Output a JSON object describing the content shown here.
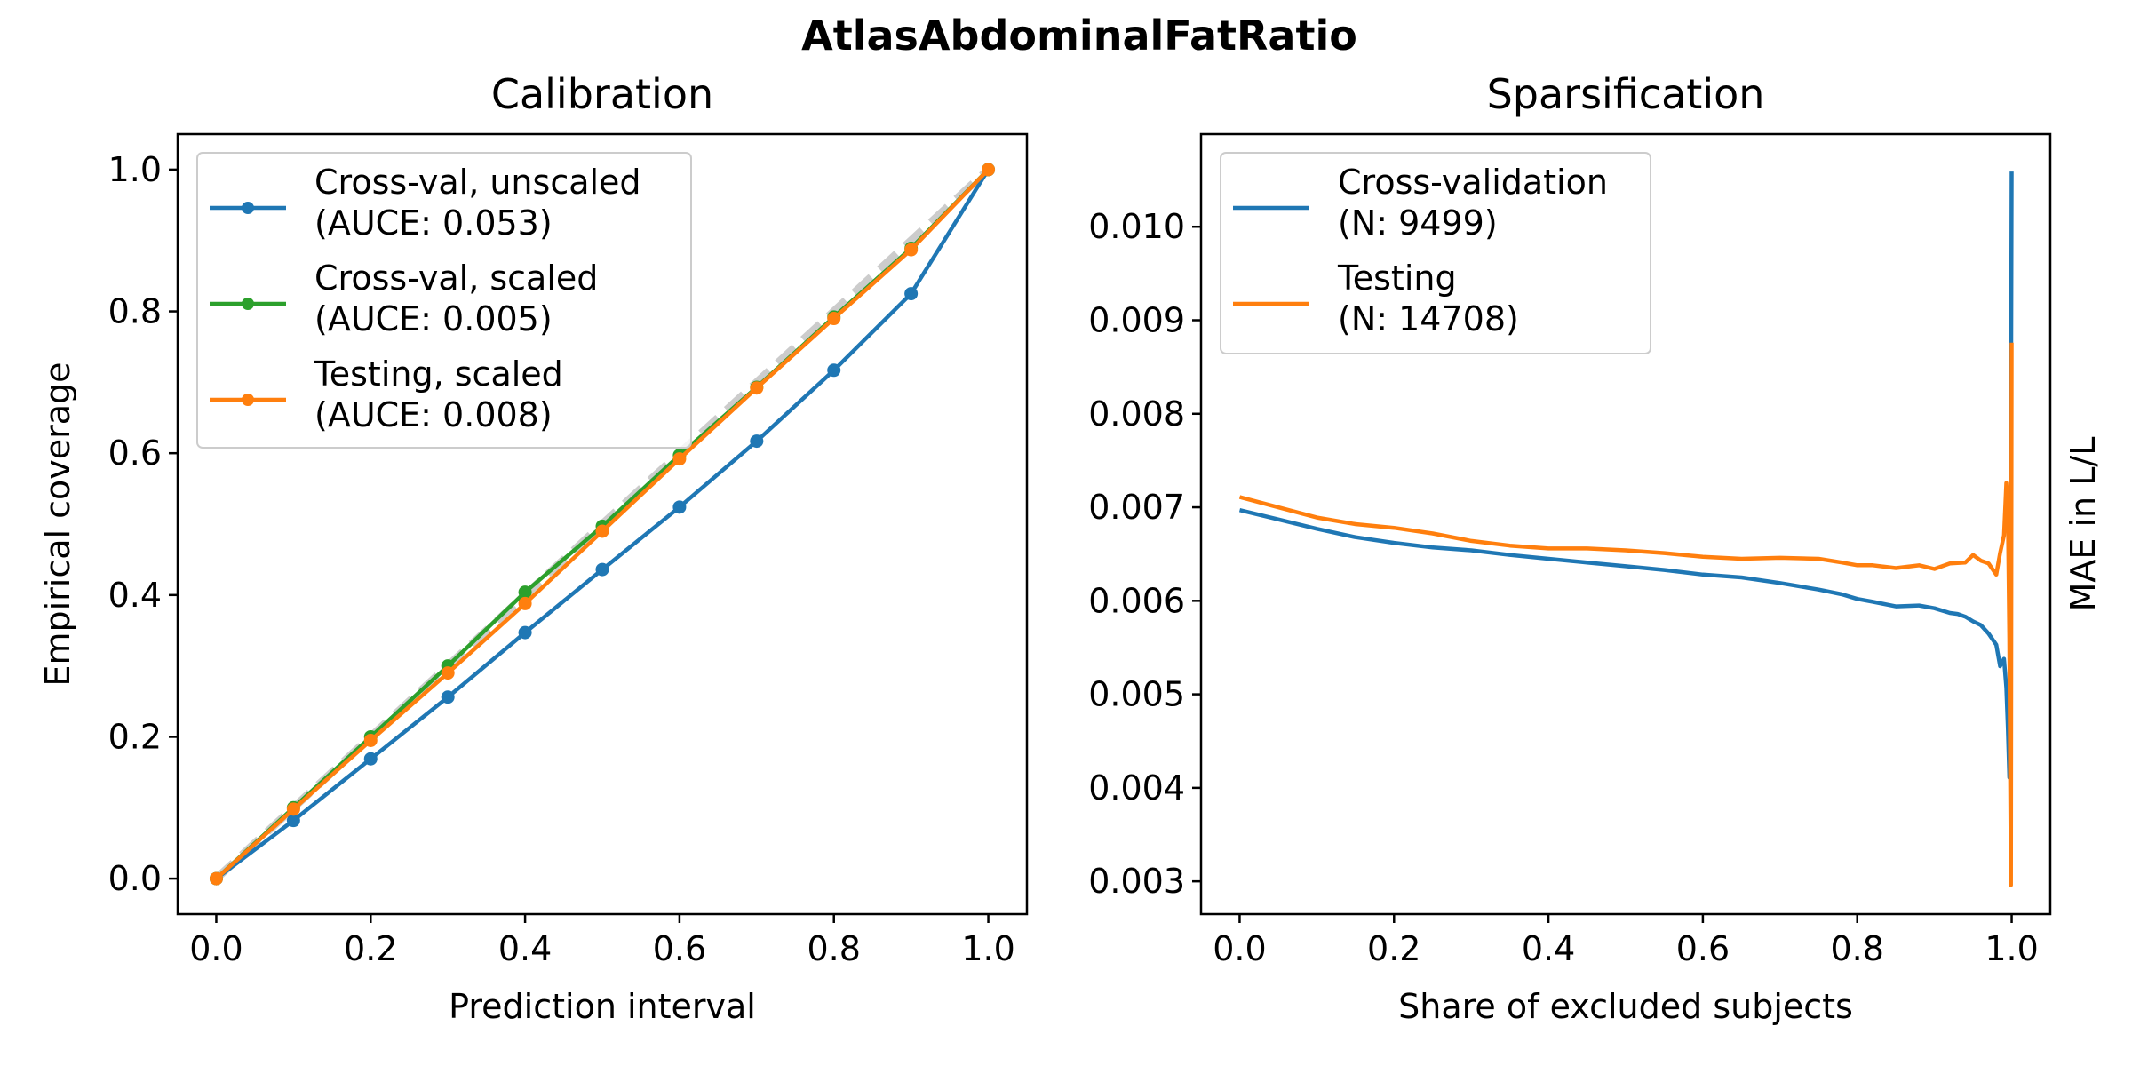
{
  "figure": {
    "suptitle": "AtlasAbdominalFatRatio"
  },
  "chart_data": [
    {
      "type": "line",
      "title": "Calibration",
      "xlabel": "Prediction interval",
      "ylabel": "Empirical coverage",
      "xlim": [
        -0.05,
        1.05
      ],
      "ylim": [
        -0.05,
        1.05
      ],
      "xticks": [
        0.0,
        0.2,
        0.4,
        0.6,
        0.8,
        1.0
      ],
      "yticks": [
        0.0,
        0.2,
        0.4,
        0.6,
        0.8,
        1.0
      ],
      "xtick_labels": [
        "0.0",
        "0.2",
        "0.4",
        "0.6",
        "0.8",
        "1.0"
      ],
      "ytick_labels": [
        "0.0",
        "0.2",
        "0.4",
        "0.6",
        "0.8",
        "1.0"
      ],
      "legend_position": "top-left",
      "reference_line": {
        "x": [
          0,
          1
        ],
        "y": [
          0,
          1
        ],
        "color": "#cccccc",
        "style": "dashed"
      },
      "x": [
        0.0,
        0.1,
        0.2,
        0.3,
        0.4,
        0.5,
        0.6,
        0.7,
        0.8,
        0.9,
        1.0
      ],
      "series": [
        {
          "name": "Cross-val, unscaled",
          "auce_label": "(AUCE: 0.053)",
          "color": "#1f77b4",
          "values": [
            0.0,
            0.082,
            0.169,
            0.256,
            0.347,
            0.436,
            0.524,
            0.617,
            0.717,
            0.825,
            1.0
          ]
        },
        {
          "name": "Cross-val, scaled",
          "auce_label": "(AUCE: 0.005)",
          "color": "#2ca02c",
          "values": [
            0.0,
            0.1,
            0.2,
            0.3,
            0.404,
            0.497,
            0.597,
            0.693,
            0.792,
            0.889,
            1.0
          ]
        },
        {
          "name": "Testing, scaled",
          "auce_label": "(AUCE: 0.008)",
          "color": "#ff7f0e",
          "values": [
            0.0,
            0.098,
            0.195,
            0.29,
            0.388,
            0.49,
            0.592,
            0.692,
            0.79,
            0.887,
            1.0
          ]
        }
      ]
    },
    {
      "type": "line",
      "title": "Sparsification",
      "xlabel": "Share of excluded subjects",
      "ylabel": "MAE in L/L",
      "ylabel_side": "right",
      "xlim": [
        -0.05,
        1.05
      ],
      "ylim": [
        0.00265,
        0.01099
      ],
      "xticks": [
        0.0,
        0.2,
        0.4,
        0.6,
        0.8,
        1.0
      ],
      "yticks": [
        0.003,
        0.004,
        0.005,
        0.006,
        0.007,
        0.008,
        0.009,
        0.01
      ],
      "xtick_labels": [
        "0.0",
        "0.2",
        "0.4",
        "0.6",
        "0.8",
        "1.0"
      ],
      "ytick_labels": [
        "0.003",
        "0.004",
        "0.005",
        "0.006",
        "0.007",
        "0.008",
        "0.009",
        "0.010"
      ],
      "legend_position": "top-left",
      "series": [
        {
          "name": "Cross-validation",
          "n_label": "(N: 9499)",
          "color": "#1f77b4",
          "x": [
            0.0,
            0.05,
            0.1,
            0.15,
            0.2,
            0.25,
            0.3,
            0.35,
            0.4,
            0.45,
            0.5,
            0.55,
            0.6,
            0.65,
            0.7,
            0.75,
            0.78,
            0.8,
            0.82,
            0.85,
            0.88,
            0.9,
            0.92,
            0.93,
            0.94,
            0.95,
            0.96,
            0.97,
            0.98,
            0.985,
            0.99,
            0.993,
            0.995,
            0.997,
            0.998,
            0.999,
            1.0
          ],
          "values": [
            0.00697,
            0.00687,
            0.00677,
            0.00668,
            0.00662,
            0.00657,
            0.00654,
            0.00649,
            0.00645,
            0.00641,
            0.00637,
            0.00633,
            0.00628,
            0.00625,
            0.00619,
            0.00612,
            0.00607,
            0.00602,
            0.00599,
            0.00594,
            0.00595,
            0.00592,
            0.00587,
            0.00586,
            0.00583,
            0.00578,
            0.00574,
            0.00565,
            0.00553,
            0.0053,
            0.00538,
            0.00507,
            0.00465,
            0.00411,
            0.00505,
            0.0076,
            0.01059
          ]
        },
        {
          "name": "Testing",
          "n_label": "(N: 14708)",
          "color": "#ff7f0e",
          "x": [
            0.0,
            0.05,
            0.1,
            0.15,
            0.2,
            0.25,
            0.3,
            0.35,
            0.4,
            0.45,
            0.5,
            0.55,
            0.6,
            0.65,
            0.7,
            0.75,
            0.78,
            0.8,
            0.82,
            0.85,
            0.88,
            0.9,
            0.92,
            0.94,
            0.95,
            0.96,
            0.97,
            0.98,
            0.985,
            0.99,
            0.993,
            0.995,
            0.997,
            0.998,
            0.999,
            1.0
          ],
          "values": [
            0.00711,
            0.007,
            0.00689,
            0.00682,
            0.00678,
            0.00672,
            0.00664,
            0.00659,
            0.00656,
            0.00656,
            0.00654,
            0.00651,
            0.00647,
            0.00645,
            0.00646,
            0.00645,
            0.00641,
            0.00638,
            0.00638,
            0.00635,
            0.00638,
            0.00634,
            0.0064,
            0.00641,
            0.00649,
            0.00643,
            0.0064,
            0.00628,
            0.00651,
            0.0067,
            0.00726,
            0.00703,
            0.0056,
            0.0042,
            0.00296,
            0.00876
          ]
        }
      ]
    }
  ]
}
